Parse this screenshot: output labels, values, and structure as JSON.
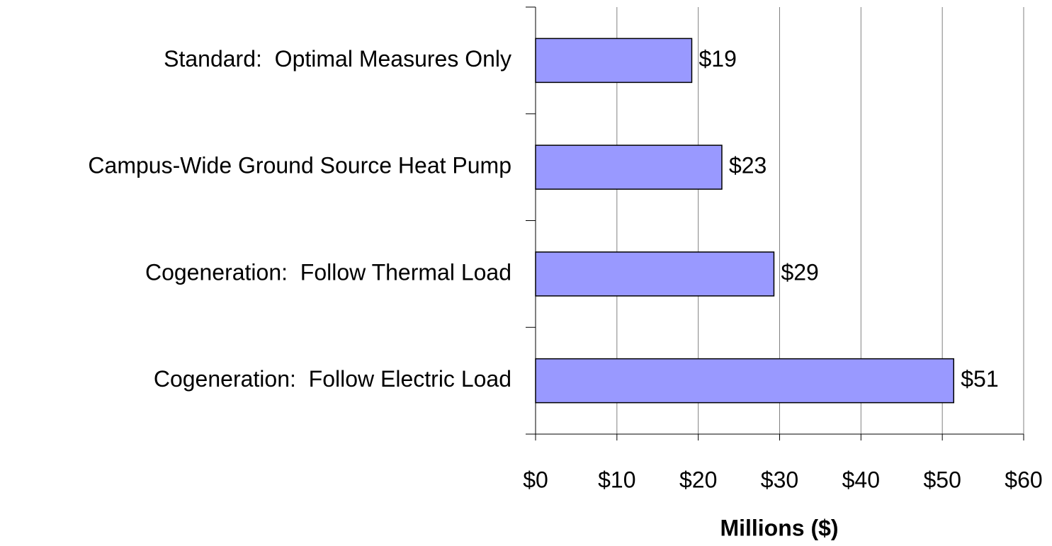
{
  "chart_data": {
    "type": "barh",
    "categories": [
      "Standard:  Optimal Measures Only",
      "Campus-Wide Ground Source Heat Pump",
      "Cogeneration:  Follow Thermal Load",
      "Cogeneration:  Follow Electric Load"
    ],
    "values": [
      19.2,
      22.9,
      29.3,
      51.4
    ],
    "value_labels": [
      "$19",
      "$23",
      "$29",
      "$51"
    ],
    "color": "#9999ff",
    "xlabel": "Millions ($)",
    "xlim": [
      0,
      60
    ],
    "xticks": [
      {
        "value": 0,
        "label": "$0"
      },
      {
        "value": 10,
        "label": "$10"
      },
      {
        "value": 20,
        "label": "$20"
      },
      {
        "value": 30,
        "label": "$30"
      },
      {
        "value": 40,
        "label": "$40"
      },
      {
        "value": 50,
        "label": "$50"
      },
      {
        "value": 60,
        "label": "$60"
      }
    ],
    "grid": true
  }
}
